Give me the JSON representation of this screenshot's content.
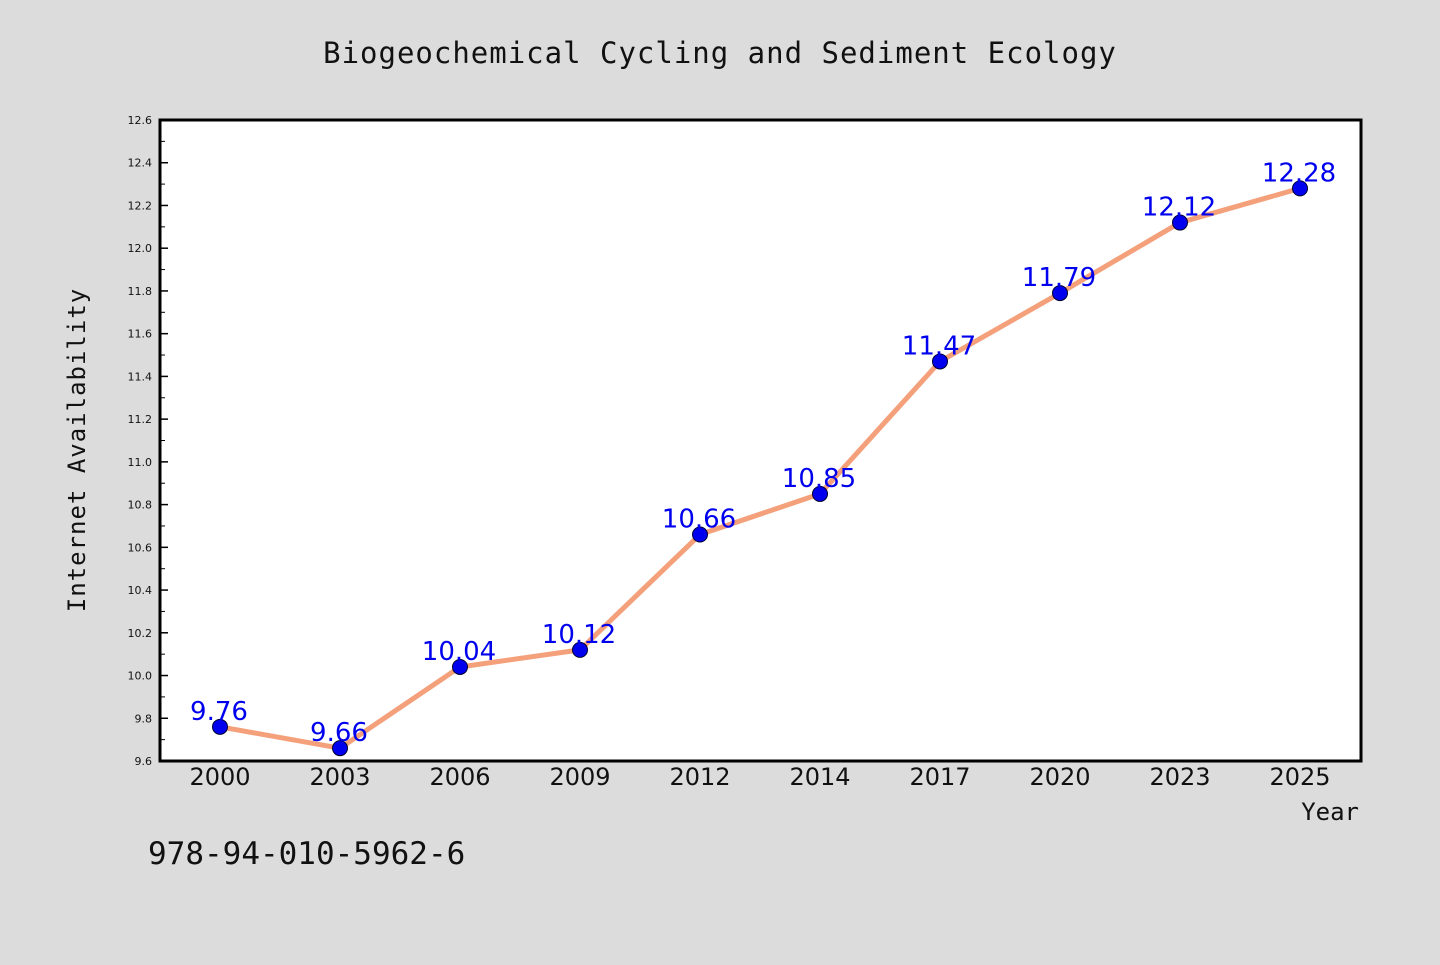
{
  "chart_data": {
    "type": "line",
    "title": "Biogeochemical Cycling and Sediment Ecology",
    "xlabel": "Year",
    "ylabel": "Internet Availability",
    "categories": [
      "2000",
      "2003",
      "2006",
      "2009",
      "2012",
      "2014",
      "2017",
      "2020",
      "2023",
      "2025"
    ],
    "values": [
      9.76,
      9.66,
      10.04,
      10.12,
      10.66,
      10.85,
      11.47,
      11.79,
      12.12,
      12.28
    ],
    "data_labels": [
      "9.76",
      "9.66",
      "10.04",
      "10.12",
      "10.66",
      "10.85",
      "11.47",
      "11.79",
      "12.12",
      "12.28"
    ],
    "ylim": [
      9.6,
      12.6
    ],
    "yticks": [
      "9.6",
      "9.8",
      "10.0",
      "10.2",
      "10.4",
      "10.6",
      "10.8",
      "11.0",
      "11.2",
      "11.4",
      "11.6",
      "11.8",
      "12.0",
      "12.2",
      "12.4",
      "12.6"
    ],
    "grid": false,
    "legend": "none",
    "line_color": "#f4a07a",
    "marker_color": "#0000ee",
    "label_color": "#0000ee",
    "plot_background": "#ffffff",
    "figure_background": "#dcdcdc"
  },
  "footer_text": "978-94-010-5962-6"
}
